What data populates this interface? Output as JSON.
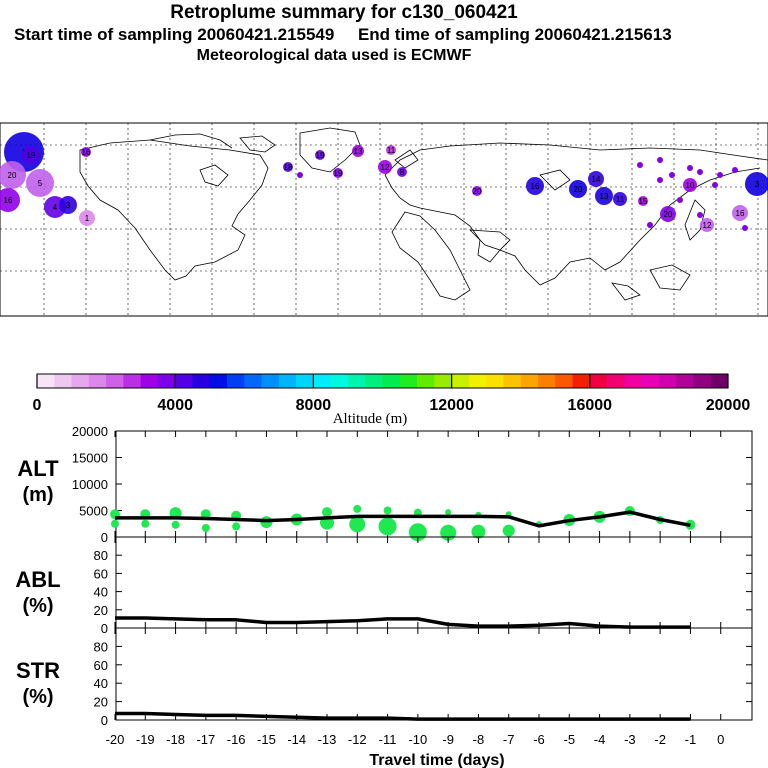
{
  "header": {
    "title": "Retroplume summary for c130_060421",
    "sampling_line": "Start time of sampling 20060421.215549     End time of sampling 20060421.215613",
    "met_line": "Meteorological data used is ECMWF"
  },
  "colorbar": {
    "label": "Altitude (m)",
    "ticks": [
      "0",
      "4000",
      "8000",
      "12000",
      "16000",
      "20000"
    ],
    "colors": [
      "#f7e4f7",
      "#efc8f0",
      "#e6a8ec",
      "#dc88ea",
      "#cf60e8",
      "#bb2ee6",
      "#a000e8",
      "#7c00e8",
      "#5200e6",
      "#2800e0",
      "#0010e4",
      "#0040f0",
      "#0068f8",
      "#0090fc",
      "#00b4fc",
      "#00d4fc",
      "#00ecfc",
      "#00f8e0",
      "#00f4b0",
      "#00f080",
      "#00ec50",
      "#20ec20",
      "#60ec00",
      "#98ec00",
      "#c8f000",
      "#f0f000",
      "#fce000",
      "#fcc400",
      "#fca400",
      "#fc8000",
      "#fc5800",
      "#f02000",
      "#f00040",
      "#f00070",
      "#f000a0",
      "#e800b8",
      "#d000b0",
      "#b00098",
      "#900080",
      "#700068"
    ]
  },
  "map": {
    "points": [
      {
        "label": "1"
      },
      {
        "label": "19"
      },
      {
        "label": "20"
      },
      {
        "label": "5"
      },
      {
        "label": "16"
      },
      {
        "label": "4"
      },
      {
        "label": "3"
      },
      {
        "label": "1"
      },
      {
        "label": "16"
      },
      {
        "label": "18"
      },
      {
        "label": "12"
      },
      {
        "label": "11"
      },
      {
        "label": "8"
      },
      {
        "label": "13"
      },
      {
        "label": "19"
      },
      {
        "label": "19"
      },
      {
        "label": "20"
      },
      {
        "label": "16"
      },
      {
        "label": "20"
      },
      {
        "label": "14"
      },
      {
        "label": "13"
      },
      {
        "label": "11"
      },
      {
        "label": "15"
      },
      {
        "label": "20"
      },
      {
        "label": "10"
      },
      {
        "label": "12"
      },
      {
        "label": "3"
      },
      {
        "label": "16"
      }
    ]
  },
  "chart_data": [
    {
      "type": "line",
      "panel": "ALT",
      "ylabel_line1": "ALT",
      "ylabel_line2": "(m)",
      "xlabel": "Travel time (days)",
      "x": [
        -20,
        -19,
        -18,
        -17,
        -16,
        -15,
        -14,
        -13,
        -12,
        -11,
        -10,
        -9,
        -8,
        -7,
        -6,
        -5,
        -4,
        -3,
        -2,
        -1
      ],
      "xlim": [
        -20,
        0
      ],
      "ylim": [
        0,
        20000
      ],
      "yticks": [
        "0",
        "5000",
        "10000",
        "15000",
        "20000"
      ],
      "series": [
        {
          "name": "median altitude",
          "values": [
            3600,
            3600,
            3600,
            3500,
            3300,
            3100,
            3300,
            3600,
            3900,
            3900,
            3900,
            3900,
            3900,
            3800,
            2100,
            3100,
            3800,
            4700,
            3300,
            2200
          ]
        }
      ],
      "scatter": [
        {
          "x": -20,
          "y": 4300
        },
        {
          "x": -20,
          "y": 2500
        },
        {
          "x": -19,
          "y": 4300
        },
        {
          "x": -19,
          "y": 2500
        },
        {
          "x": -18,
          "y": 4500
        },
        {
          "x": -18,
          "y": 2300
        },
        {
          "x": -17,
          "y": 4300
        },
        {
          "x": -17,
          "y": 1700
        },
        {
          "x": -16,
          "y": 4000
        },
        {
          "x": -16,
          "y": 2000
        },
        {
          "x": -15,
          "y": 2800
        },
        {
          "x": -14,
          "y": 3300
        },
        {
          "x": -13,
          "y": 4700
        },
        {
          "x": -13,
          "y": 2700
        },
        {
          "x": -12,
          "y": 5300
        },
        {
          "x": -12,
          "y": 2400
        },
        {
          "x": -11,
          "y": 5000
        },
        {
          "x": -11,
          "y": 2000
        },
        {
          "x": -10,
          "y": 4600
        },
        {
          "x": -10,
          "y": 900
        },
        {
          "x": -9,
          "y": 4700
        },
        {
          "x": -9,
          "y": 800
        },
        {
          "x": -8,
          "y": 4200
        },
        {
          "x": -8,
          "y": 1000
        },
        {
          "x": -7,
          "y": 4300
        },
        {
          "x": -7,
          "y": 1200
        },
        {
          "x": -6,
          "y": 2400
        },
        {
          "x": -5,
          "y": 3200
        },
        {
          "x": -4,
          "y": 3800
        },
        {
          "x": -3,
          "y": 4900
        },
        {
          "x": -2,
          "y": 3200
        },
        {
          "x": -1,
          "y": 2300
        }
      ]
    },
    {
      "type": "line",
      "panel": "ABL",
      "ylabel_line1": "ABL",
      "ylabel_line2": "(%)",
      "x": [
        -20,
        -19,
        -18,
        -17,
        -16,
        -15,
        -14,
        -13,
        -12,
        -11,
        -10,
        -9,
        -8,
        -7,
        -6,
        -5,
        -4,
        -3,
        -2,
        -1
      ],
      "ylim": [
        0,
        100
      ],
      "yticks": [
        "0",
        "20",
        "40",
        "60",
        "80"
      ],
      "series": [
        {
          "name": "ABL fraction",
          "values": [
            11,
            11,
            10,
            9,
            9,
            6,
            6,
            7,
            8,
            10,
            10,
            4,
            2,
            2,
            3,
            5,
            2,
            1,
            1,
            1
          ]
        }
      ]
    },
    {
      "type": "line",
      "panel": "STR",
      "ylabel_line1": "STR",
      "ylabel_line2": "(%)",
      "x": [
        -20,
        -19,
        -18,
        -17,
        -16,
        -15,
        -14,
        -13,
        -12,
        -11,
        -10,
        -9,
        -8,
        -7,
        -6,
        -5,
        -4,
        -3,
        -2,
        -1
      ],
      "ylim": [
        0,
        100
      ],
      "yticks": [
        "0",
        "20",
        "40",
        "60",
        "80"
      ],
      "xticks": [
        "-20",
        "-19",
        "-18",
        "-17",
        "-16",
        "-15",
        "-14",
        "-13",
        "-12",
        "-11",
        "-10",
        "-9",
        "-8",
        "-7",
        "-6",
        "-5",
        "-4",
        "-3",
        "-2",
        "-1",
        "0"
      ],
      "series": [
        {
          "name": "stratospheric fraction",
          "values": [
            7,
            7,
            6,
            5,
            5,
            4,
            3,
            2,
            2,
            2,
            1,
            1,
            1,
            1,
            1,
            1,
            1,
            1,
            1,
            1
          ]
        }
      ]
    }
  ]
}
